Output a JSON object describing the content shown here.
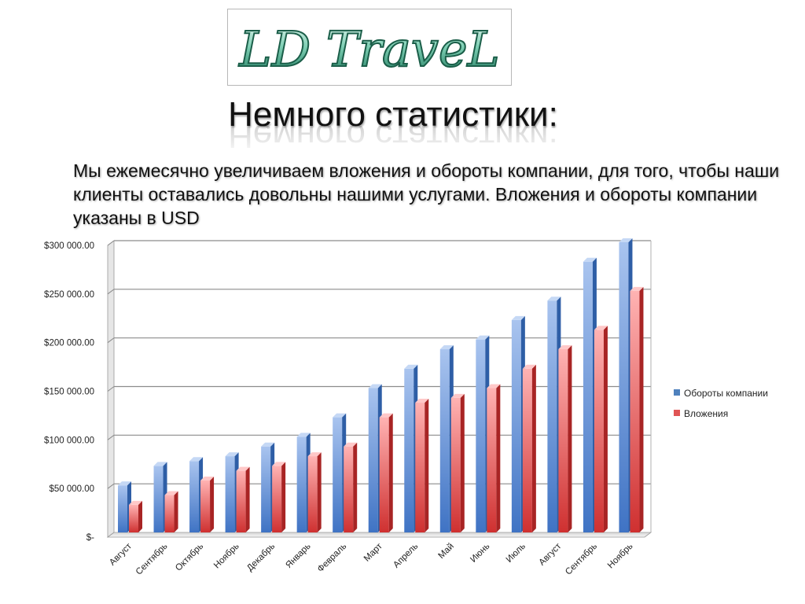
{
  "logo": {
    "text": "LD TraveL"
  },
  "title": "Немного статистики:",
  "intro": "Мы ежемесячно увеличиваем вложения и обороты компании, для того, чтобы наши клиенты оставались довольны нашими услугами. Вложения и обороты компании указаны в USD",
  "colors": {
    "series1": "#4f81bd",
    "series2": "#e05555",
    "accent": "#2a8c6c"
  },
  "chart_data": {
    "type": "bar",
    "categories": [
      "Август",
      "Сентябрь",
      "Октябрь",
      "Ноябрь",
      "Декабрь",
      "Январь",
      "Февраль",
      "Март",
      "Апрель",
      "Май",
      "Июнь",
      "Июль",
      "Август",
      "Сентябрь",
      "Ноябрь"
    ],
    "series": [
      {
        "name": "Обороты компании",
        "values": [
          50000,
          70000,
          75000,
          80000,
          90000,
          100000,
          120000,
          150000,
          170000,
          190000,
          200000,
          220000,
          240000,
          280000,
          300000
        ]
      },
      {
        "name": "Вложения",
        "values": [
          30000,
          40000,
          55000,
          65000,
          70000,
          80000,
          90000,
          120000,
          135000,
          140000,
          150000,
          170000,
          190000,
          210000,
          250000
        ]
      }
    ],
    "ylim": [
      0,
      300000
    ],
    "yticks": [
      {
        "value": 0,
        "label": "$-"
      },
      {
        "value": 50000,
        "label": "$50 000.00"
      },
      {
        "value": 100000,
        "label": "$100 000.00"
      },
      {
        "value": 150000,
        "label": "$150 000.00"
      },
      {
        "value": 200000,
        "label": "$200 000.00"
      },
      {
        "value": 250000,
        "label": "$250 000.00"
      },
      {
        "value": 300000,
        "label": "$300 000.00"
      }
    ],
    "grid": true,
    "legend": "right",
    "title": "",
    "xlabel": "",
    "ylabel": ""
  }
}
